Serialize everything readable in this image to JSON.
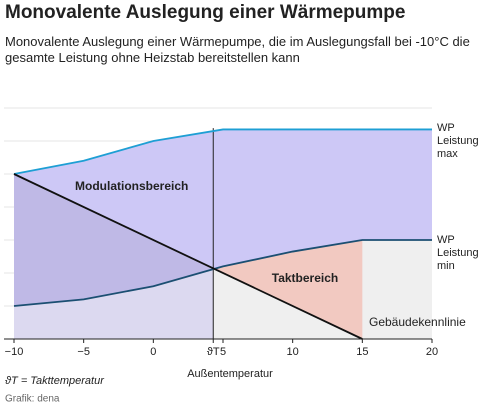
{
  "chart_data": {
    "type": "line",
    "title": "Monovalente Auslegung einer Wärmepumpe",
    "subtitle": "Monovalente Auslegung einer Wärmepumpe, die im Auslegungsfall bei -10°C die gesamte Leistung ohne Heizstab bereitstellen kann",
    "x_label": "Außentemperatur",
    "xlim": [
      -10,
      20
    ],
    "xticks": [
      {
        "value": -10,
        "label": "−10"
      },
      {
        "value": -5,
        "label": "−5"
      },
      0,
      {
        "value": 4.3,
        "label": "ϑT"
      },
      5,
      10,
      15,
      20
    ],
    "ylim": [
      0,
      7
    ],
    "yticks": [
      0,
      1,
      2,
      3,
      4,
      5,
      6,
      7
    ],
    "grid": true,
    "series": [
      {
        "name": "WP Leistung max",
        "color": "#1e9fd4",
        "x": [
          -10,
          -5,
          0,
          5,
          10,
          15,
          20
        ],
        "values": [
          5.0,
          5.4,
          6.0,
          6.35,
          6.35,
          6.35,
          6.35
        ]
      },
      {
        "name": "WP Leistung min",
        "color": "#1b4f72",
        "x": [
          -10,
          -5,
          0,
          5,
          10,
          15,
          20
        ],
        "values": [
          1.0,
          1.2,
          1.6,
          2.2,
          2.65,
          3.0,
          3.0
        ]
      },
      {
        "name": "Gebäudekennlinie",
        "color": "#111111",
        "x": [
          -10,
          15
        ],
        "values": [
          5.0,
          0
        ]
      }
    ],
    "annotations": [
      "Modulationsbereich",
      "Taktbereich"
    ],
    "note": "ϑT = Takttemperatur",
    "source": "Grafik: dena"
  }
}
